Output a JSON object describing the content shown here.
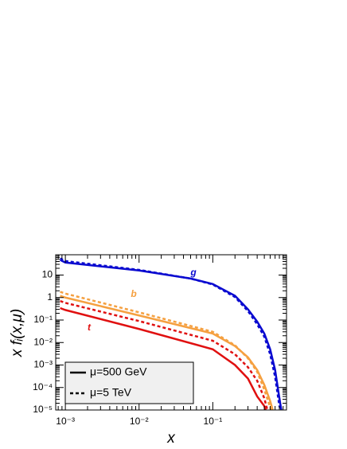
{
  "chart_data": {
    "type": "line",
    "xlabel": "x",
    "ylabel": "x fᵢ(x,μ)",
    "xscale": "log",
    "yscale": "log",
    "xlim": [
      0.00074,
      1
    ],
    "ylim": [
      1e-05,
      80
    ],
    "xticks": [
      {
        "value": 0.001,
        "label": "10⁻³"
      },
      {
        "value": 0.01,
        "label": "10⁻²"
      },
      {
        "value": 0.1,
        "label": "10⁻¹"
      }
    ],
    "yticks": [
      {
        "value": 1e-05,
        "label": "10⁻⁵"
      },
      {
        "value": 0.0001,
        "label": "10⁻⁴"
      },
      {
        "value": 0.001,
        "label": "10⁻³"
      },
      {
        "value": 0.01,
        "label": "10⁻²"
      },
      {
        "value": 0.1,
        "label": "10⁻¹"
      },
      1,
      10
    ],
    "legend": [
      {
        "label": "μ=500 GeV",
        "dash": "solid"
      },
      {
        "label": "μ=5 TeV",
        "dash": "dashed"
      }
    ],
    "annotations": [
      {
        "text": "g",
        "color": "#0a0ad0"
      },
      {
        "text": "b",
        "color": "#f5a040"
      },
      {
        "text": "t",
        "color": "#e01010"
      }
    ],
    "series": [
      {
        "color": "#0a0ad0",
        "dash": "solid",
        "x": [
          0.00085,
          0.001,
          0.01,
          0.05,
          0.1,
          0.2,
          0.3,
          0.4,
          0.5,
          0.6,
          0.7,
          0.8,
          0.85
        ],
        "values": [
          47,
          36,
          16,
          7,
          4,
          1.2,
          0.3,
          0.085,
          0.025,
          0.005,
          0.0006,
          3.4e-05,
          1e-05
        ]
      },
      {
        "color": "#0a0ad0",
        "dash": "dashed",
        "x": [
          0.00085,
          0.001,
          0.01,
          0.05,
          0.1,
          0.2,
          0.3,
          0.4,
          0.5,
          0.6,
          0.7,
          0.8,
          0.84
        ],
        "values": [
          55,
          42,
          17,
          7,
          3.8,
          1.05,
          0.25,
          0.065,
          0.018,
          0.003,
          0.0003,
          1.5e-05,
          1e-05
        ]
      },
      {
        "color": "#f5a040",
        "dash": "solid",
        "x": [
          0.00085,
          0.001,
          0.01,
          0.1,
          0.2,
          0.3,
          0.4,
          0.5,
          0.6,
          0.65
        ],
        "values": [
          1.2,
          1.0,
          0.16,
          0.025,
          0.007,
          0.0022,
          0.0006,
          0.00013,
          2.5e-05,
          1e-05
        ]
      },
      {
        "color": "#f5a040",
        "dash": "dashed",
        "x": [
          0.00085,
          0.001,
          0.01,
          0.1,
          0.2,
          0.3,
          0.4,
          0.5,
          0.6,
          0.62
        ],
        "values": [
          1.8,
          1.5,
          0.22,
          0.03,
          0.0075,
          0.002,
          0.0005,
          8e-05,
          1.3e-05,
          1e-05
        ]
      },
      {
        "color": "#e01010",
        "dash": "solid",
        "x": [
          0.00085,
          0.001,
          0.01,
          0.1,
          0.2,
          0.3,
          0.4,
          0.5,
          0.52
        ],
        "values": [
          0.34,
          0.28,
          0.04,
          0.005,
          0.001,
          0.00025,
          4e-05,
          1.5e-05,
          1e-05
        ]
      },
      {
        "color": "#e01010",
        "dash": "dashed",
        "x": [
          0.00085,
          0.001,
          0.01,
          0.1,
          0.2,
          0.3,
          0.4,
          0.5,
          0.55
        ],
        "values": [
          0.7,
          0.58,
          0.09,
          0.012,
          0.003,
          0.0008,
          0.0002,
          3.3e-05,
          1e-05
        ]
      }
    ]
  }
}
